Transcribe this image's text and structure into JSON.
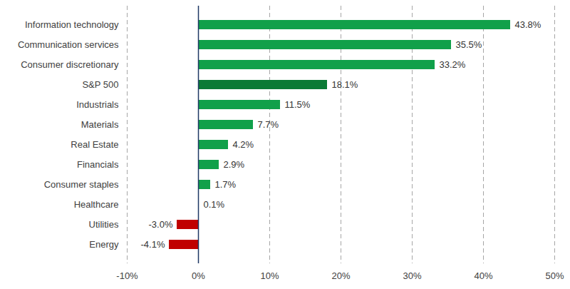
{
  "chart_data": {
    "type": "bar",
    "orientation": "horizontal",
    "categories": [
      "Information technology",
      "Communication services",
      "Consumer discretionary",
      "S&P 500",
      "Industrials",
      "Materials",
      "Real Estate",
      "Financials",
      "Consumer staples",
      "Healthcare",
      "Utilities",
      "Energy"
    ],
    "values": [
      43.8,
      35.5,
      33.2,
      18.1,
      11.5,
      7.7,
      4.2,
      2.9,
      1.7,
      0.1,
      -3.0,
      -4.1
    ],
    "value_labels": [
      "43.8%",
      "35.5%",
      "33.2%",
      "18.1%",
      "11.5%",
      "7.7%",
      "4.2%",
      "2.9%",
      "1.7%",
      "0.1%",
      "-3.0%",
      "-4.1%"
    ],
    "colors": [
      "#11a04a",
      "#11a04a",
      "#11a04a",
      "#0b7a35",
      "#11a04a",
      "#11a04a",
      "#11a04a",
      "#11a04a",
      "#11a04a",
      "#11a04a",
      "#c00000",
      "#c00000"
    ],
    "data_labels": true,
    "grid": true,
    "xlim": [
      -10,
      50
    ],
    "xticks": [
      {
        "value": -10,
        "label": "-10%"
      },
      {
        "value": 0,
        "label": "0%"
      },
      {
        "value": 10,
        "label": "10%"
      },
      {
        "value": 20,
        "label": "20%"
      },
      {
        "value": 30,
        "label": "30%"
      },
      {
        "value": 40,
        "label": "40%"
      },
      {
        "value": 50,
        "label": "50%"
      }
    ]
  }
}
